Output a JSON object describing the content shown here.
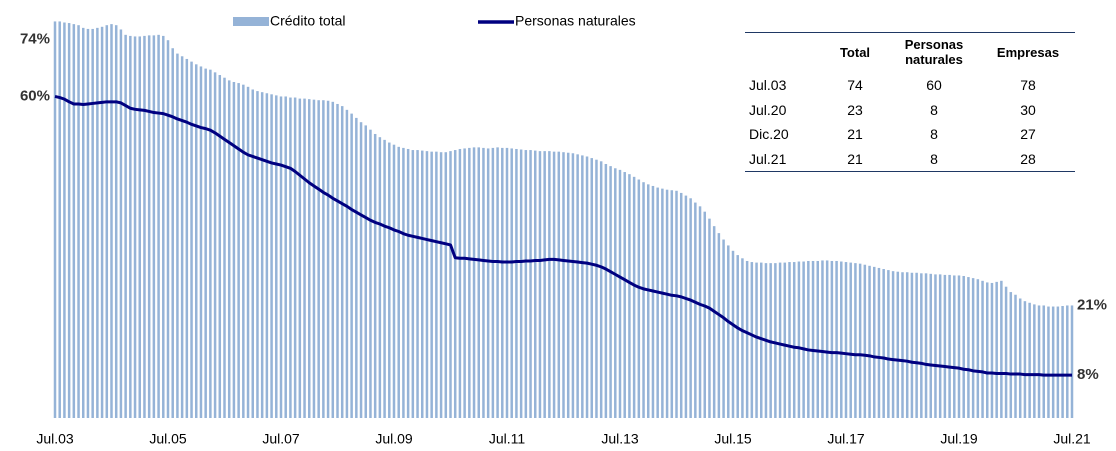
{
  "chart_data": {
    "type": "bar-line",
    "categories": [
      "Jul.03",
      null,
      null,
      null,
      null,
      null,
      null,
      null,
      null,
      null,
      null,
      null,
      null,
      null,
      null,
      null,
      null,
      null,
      null,
      null,
      null,
      null,
      null,
      null,
      "Jul.05",
      null,
      null,
      null,
      null,
      null,
      null,
      null,
      null,
      null,
      null,
      null,
      null,
      null,
      null,
      null,
      null,
      null,
      null,
      null,
      null,
      null,
      null,
      null,
      "Jul.07",
      null,
      null,
      null,
      null,
      null,
      null,
      null,
      null,
      null,
      null,
      null,
      null,
      null,
      null,
      null,
      null,
      null,
      null,
      null,
      null,
      null,
      null,
      null,
      "Jul.09",
      null,
      null,
      null,
      null,
      null,
      null,
      null,
      null,
      null,
      null,
      null,
      null,
      null,
      null,
      null,
      null,
      null,
      null,
      null,
      null,
      null,
      null,
      null,
      "Jul.11",
      null,
      null,
      null,
      null,
      null,
      null,
      null,
      null,
      null,
      null,
      null,
      null,
      null,
      null,
      null,
      null,
      null,
      null,
      null,
      null,
      null,
      null,
      null,
      "Jul.13",
      null,
      null,
      null,
      null,
      null,
      null,
      null,
      null,
      null,
      null,
      null,
      null,
      null,
      null,
      null,
      null,
      null,
      null,
      null,
      null,
      null,
      null,
      null,
      "Jul.15",
      null,
      null,
      null,
      null,
      null,
      null,
      null,
      null,
      null,
      null,
      null,
      null,
      null,
      null,
      null,
      null,
      null,
      null,
      null,
      null,
      null,
      null,
      null,
      "Jul.17",
      null,
      null,
      null,
      null,
      null,
      null,
      null,
      null,
      null,
      null,
      null,
      null,
      null,
      null,
      null,
      null,
      null,
      null,
      null,
      null,
      null,
      null,
      null,
      "Jul.19",
      null,
      null,
      null,
      null,
      null,
      null,
      null,
      null,
      null,
      null,
      null,
      null,
      null,
      null,
      null,
      null,
      null,
      null,
      null,
      null,
      null,
      null,
      null,
      "Jul.21"
    ],
    "series": [
      {
        "name": "Crédito total",
        "type": "bar",
        "color": "#95b3d7",
        "start_label": "74%",
        "end_label": "21%",
        "values": [
          74,
          74,
          73.8,
          73.7,
          73.5,
          73.3,
          72.8,
          72.6,
          72.6,
          72.8,
          73,
          73.3,
          73.5,
          73.3,
          72.5,
          71.5,
          71.3,
          71.2,
          71.2,
          71.3,
          71.4,
          71.4,
          71.5,
          71.3,
          70.5,
          69,
          68,
          67.5,
          67,
          66.5,
          66,
          65.6,
          65.2,
          65,
          64.5,
          64,
          63.5,
          63,
          62.7,
          62.5,
          62.2,
          61.8,
          61.3,
          61,
          60.8,
          60.6,
          60.4,
          60.2,
          60,
          60,
          59.8,
          59.8,
          59.6,
          59.6,
          59.5,
          59.4,
          59.3,
          59.3,
          59.2,
          59,
          58.6,
          58.2,
          57.5,
          56.8,
          56,
          55.2,
          54.6,
          53.8,
          53,
          52.4,
          51.9,
          51.4,
          51,
          50.6,
          50.4,
          50.2,
          50,
          50,
          49.9,
          49.8,
          49.7,
          49.7,
          49.6,
          49.6,
          49.8,
          50,
          50.2,
          50.3,
          50.4,
          50.5,
          50.5,
          50.4,
          50.3,
          50.4,
          50.5,
          50.4,
          50.4,
          50.3,
          50.2,
          50.1,
          50,
          50,
          49.9,
          49.8,
          49.8,
          49.8,
          49.7,
          49.7,
          49.6,
          49.5,
          49.4,
          49.2,
          49,
          48.8,
          48.5,
          48.2,
          47.9,
          47.4,
          47,
          46.6,
          46.3,
          45.9,
          45.5,
          45,
          44.5,
          44,
          43.6,
          43.3,
          43,
          42.8,
          42.6,
          42.5,
          42.4,
          42,
          41.5,
          41,
          40.2,
          39.5,
          38.5,
          37.2,
          35.8,
          34.5,
          33.3,
          32.2,
          31.2,
          30.4,
          29.8,
          29.3,
          29.1,
          29,
          29,
          28.9,
          28.9,
          28.9,
          29,
          29,
          29.1,
          29.1,
          29.2,
          29.2,
          29.3,
          29.3,
          29.3,
          29.4,
          29.4,
          29.3,
          29.3,
          29.2,
          29.1,
          29,
          28.9,
          28.8,
          28.6,
          28.4,
          28.2,
          28,
          27.8,
          27.6,
          27.4,
          27.3,
          27.2,
          27.2,
          27.1,
          27.1,
          27,
          27,
          26.9,
          26.8,
          26.8,
          26.7,
          26.7,
          26.6,
          26.6,
          26.5,
          26.3,
          26.1,
          25.9,
          25.6,
          25.3,
          25.2,
          25.4,
          25.6,
          24.5,
          23.5,
          23,
          22.3,
          21.8,
          21.5,
          21.2,
          21,
          21,
          20.8,
          20.8,
          20.8,
          20.9,
          21,
          21
        ]
      },
      {
        "name": "Personas naturales",
        "type": "line",
        "color": "#000080",
        "start_label": "60%",
        "end_label": "8%",
        "values": [
          60,
          59.8,
          59.5,
          59,
          58.6,
          58.6,
          58.5,
          58.6,
          58.7,
          58.8,
          58.9,
          59,
          59,
          59,
          58.8,
          58.3,
          57.8,
          57.6,
          57.5,
          57.4,
          57.2,
          57,
          56.9,
          56.8,
          56.5,
          56.2,
          55.8,
          55.5,
          55.2,
          54.8,
          54.5,
          54.2,
          54,
          53.7,
          53.2,
          52.6,
          52,
          51.4,
          50.8,
          50.2,
          49.6,
          49.1,
          48.8,
          48.5,
          48.2,
          47.9,
          47.6,
          47.4,
          47.2,
          46.9,
          46.6,
          46,
          45.3,
          44.6,
          43.9,
          43.3,
          42.7,
          42.1,
          41.6,
          41,
          40.5,
          40,
          39.5,
          38.9,
          38.4,
          37.9,
          37.4,
          36.9,
          36.5,
          36.2,
          35.8,
          35.5,
          35.1,
          34.8,
          34.4,
          34.1,
          33.9,
          33.7,
          33.5,
          33.3,
          33.1,
          32.9,
          32.7,
          32.5,
          32.3,
          29.9,
          29.8,
          29.8,
          29.7,
          29.6,
          29.5,
          29.4,
          29.3,
          29.2,
          29.2,
          29.1,
          29.1,
          29.1,
          29.2,
          29.2,
          29.3,
          29.3,
          29.4,
          29.4,
          29.5,
          29.6,
          29.6,
          29.5,
          29.4,
          29.3,
          29.2,
          29.1,
          29,
          28.9,
          28.7,
          28.5,
          28.2,
          27.8,
          27.3,
          26.8,
          26.3,
          25.8,
          25.3,
          24.8,
          24.4,
          24.1,
          23.9,
          23.7,
          23.5,
          23.3,
          23.1,
          22.9,
          22.8,
          22.6,
          22.3,
          22,
          21.6,
          21.2,
          20.9,
          20.5,
          19.9,
          19.3,
          18.7,
          18,
          17.4,
          16.8,
          16.3,
          15.9,
          15.5,
          15.1,
          14.8,
          14.5,
          14.2,
          14,
          13.8,
          13.6,
          13.4,
          13.2,
          13.1,
          12.9,
          12.7,
          12.6,
          12.5,
          12.4,
          12.3,
          12.2,
          12.2,
          12.1,
          12,
          11.9,
          11.8,
          11.8,
          11.7,
          11.6,
          11.4,
          11.3,
          11.2,
          11,
          10.9,
          10.8,
          10.7,
          10.6,
          10.4,
          10.3,
          10.2,
          10,
          9.9,
          9.8,
          9.7,
          9.6,
          9.5,
          9.4,
          9.3,
          9.1,
          9,
          8.8,
          8.7,
          8.6,
          8.4,
          8.4,
          8.3,
          8.3,
          8.3,
          8.2,
          8.2,
          8.2,
          8.1,
          8.1,
          8.1,
          8.1,
          8,
          8,
          8,
          8,
          8,
          8,
          8
        ]
      }
    ],
    "ylim": [
      0,
      78
    ]
  },
  "table": {
    "header": [
      "Total",
      "Personas naturales",
      "Empresas"
    ],
    "rows": [
      [
        "Jul.03",
        "74",
        "60",
        "78"
      ],
      [
        "Jul.20",
        "23",
        "8",
        "30"
      ],
      [
        "Dic.20",
        "21",
        "8",
        "27"
      ],
      [
        "Jul.21",
        "21",
        "8",
        "28"
      ]
    ]
  }
}
